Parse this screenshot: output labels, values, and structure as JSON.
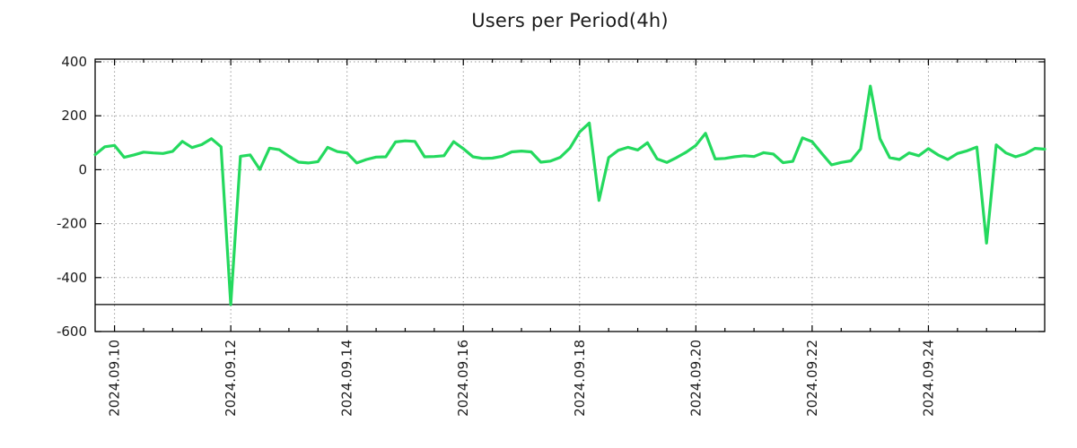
{
  "title": "Users per Period(4h)",
  "chart_data": {
    "type": "line",
    "title": "Users per Period(4h)",
    "xlabel": "",
    "ylabel": "",
    "legend": "none",
    "grid": "dotted",
    "ylim": [
      -600,
      400
    ],
    "y_ticks": [
      400,
      200,
      0,
      -200,
      -400,
      -600
    ],
    "x_ticks": [
      {
        "label": "2024.09.10",
        "hour": 8
      },
      {
        "label": "2024.09.12",
        "hour": 56
      },
      {
        "label": "2024.09.14",
        "hour": 104
      },
      {
        "label": "2024.09.16",
        "hour": 152
      },
      {
        "label": "2024.09.18",
        "hour": 200
      },
      {
        "label": "2024.09.20",
        "hour": 248
      },
      {
        "label": "2024.09.22",
        "hour": 296
      },
      {
        "label": "2024.09.24",
        "hour": 344
      }
    ],
    "x_start": "2024.09.09 16:00",
    "x_end": "2024.09.26 00:00",
    "x_total_hours": 392,
    "period_hours": 4,
    "minor_tick_hours": 12,
    "baseline_y": -500,
    "line_color": "#24d95e",
    "values": [
      56,
      85,
      90,
      46,
      55,
      65,
      62,
      60,
      68,
      105,
      82,
      93,
      115,
      85,
      -500,
      50,
      55,
      1,
      80,
      74,
      50,
      28,
      25,
      30,
      83,
      67,
      62,
      25,
      38,
      47,
      48,
      103,
      107,
      105,
      48,
      49,
      52,
      104,
      78,
      48,
      42,
      43,
      50,
      66,
      69,
      66,
      28,
      32,
      46,
      80,
      140,
      173,
      -114,
      45,
      72,
      83,
      73,
      100,
      40,
      27,
      45,
      65,
      90,
      135,
      40,
      42,
      48,
      52,
      49,
      63,
      58,
      26,
      31,
      118,
      104,
      60,
      18,
      27,
      33,
      77,
      310,
      115,
      45,
      38,
      62,
      52,
      78,
      55,
      38,
      60,
      70,
      84,
      -272,
      92,
      62,
      48,
      59,
      79,
      76
    ]
  }
}
